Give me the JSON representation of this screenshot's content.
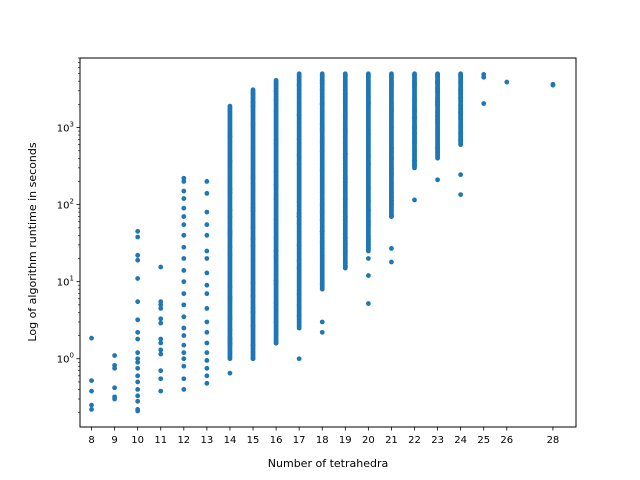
{
  "chart_data": {
    "type": "scatter",
    "xlabel": "Number of tetrahedra",
    "ylabel": "Log of algorithm runtime in seconds",
    "y_scale": "log",
    "ylim": [
      0.13,
      8000
    ],
    "xlim": [
      7.5,
      29
    ],
    "grid": false,
    "legend": "none",
    "x_ticks": [
      8,
      9,
      10,
      11,
      12,
      13,
      14,
      15,
      16,
      17,
      18,
      19,
      20,
      21,
      22,
      23,
      24,
      25,
      26,
      28
    ],
    "y_ticks": [
      {
        "value": 1,
        "base": "10",
        "exp": "0"
      },
      {
        "value": 10,
        "base": "10",
        "exp": "1"
      },
      {
        "value": 100,
        "base": "10",
        "exp": "2"
      },
      {
        "value": 1000,
        "base": "10",
        "exp": "3"
      }
    ],
    "marker_color": "#1f77b4",
    "columns": [
      {
        "x": 8,
        "y_values": [
          1.85,
          0.52,
          0.38,
          0.25,
          0.22
        ]
      },
      {
        "x": 9,
        "y_values": [
          1.1,
          0.82,
          0.75,
          0.42,
          0.32,
          0.3
        ]
      },
      {
        "x": 10,
        "y_values": [
          45,
          38,
          22,
          19,
          11,
          5.5,
          3.2,
          2.2,
          1.8,
          1.2,
          1.0,
          0.9,
          0.75,
          0.6,
          0.5,
          0.4,
          0.33,
          0.28,
          0.22,
          0.21
        ]
      },
      {
        "x": 11,
        "y_values": [
          15.5,
          5.5,
          5.0,
          4.5,
          3.3,
          2.9,
          1.8,
          1.6,
          1.3,
          1.15,
          0.7,
          0.55,
          0.38
        ]
      },
      {
        "x": 12,
        "y_values": [
          220,
          200,
          150,
          120,
          90,
          70,
          55,
          40,
          28,
          20,
          14,
          10,
          7,
          5,
          3.5,
          2.5,
          2,
          1.5,
          1.2,
          1.0,
          0.8,
          0.55,
          0.4
        ]
      },
      {
        "x": 13,
        "y_values": [
          200,
          140,
          80,
          55,
          40,
          25,
          20,
          13,
          9,
          7,
          4.5,
          3,
          2.2,
          1.6,
          1.2,
          0.95,
          0.75,
          0.6,
          0.48
        ]
      },
      {
        "x": 14,
        "range": [
          1.0,
          1900
        ],
        "extra": [
          1.65,
          1.55,
          0.65
        ]
      },
      {
        "x": 15,
        "range": [
          1.0,
          3100
        ],
        "extra": [
          2100,
          1100,
          1.0
        ]
      },
      {
        "x": 16,
        "range": [
          1.6,
          4100
        ],
        "extra": [
          3000,
          1.6
        ]
      },
      {
        "x": 17,
        "range": [
          2.5,
          5000
        ],
        "extra": [
          1.0
        ]
      },
      {
        "x": 18,
        "range": [
          8.0,
          5000
        ],
        "extra": [
          3.0,
          2.2
        ]
      },
      {
        "x": 19,
        "range": [
          15,
          5000
        ],
        "extra": []
      },
      {
        "x": 20,
        "range": [
          25,
          5000
        ],
        "extra": [
          20,
          12,
          5.2
        ]
      },
      {
        "x": 21,
        "range": [
          70,
          5000
        ],
        "extra": [
          27,
          18
        ]
      },
      {
        "x": 22,
        "range": [
          300,
          5000
        ],
        "extra": [
          115
        ]
      },
      {
        "x": 23,
        "range": [
          400,
          5000
        ],
        "extra": [
          210
        ]
      },
      {
        "x": 24,
        "range": [
          600,
          5000
        ],
        "extra": [
          245,
          135
        ]
      },
      {
        "x": 25,
        "y_values": [
          4900,
          4500,
          2050
        ]
      },
      {
        "x": 26,
        "y_values": [
          3900
        ]
      },
      {
        "x": 28,
        "y_values": [
          3650,
          3550
        ]
      }
    ]
  }
}
